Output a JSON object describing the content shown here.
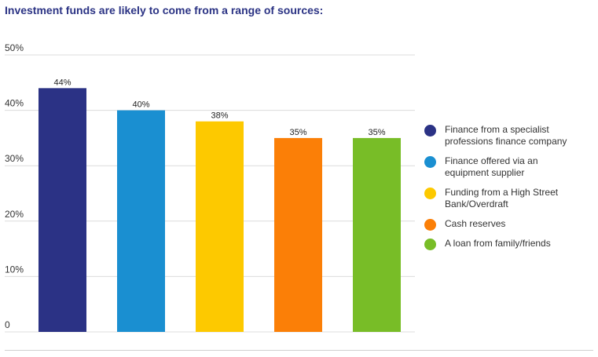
{
  "title": "Investment funds are likely to come from a range of sources:",
  "chart_data": {
    "type": "bar",
    "title": "Investment funds are likely to come from a range of sources:",
    "categories": [
      "Finance from a specialist professions finance company",
      "Finance offered via an equipment supplier",
      "Funding from a High Street Bank/Overdraft",
      "Cash reserves",
      "A loan from family/friends"
    ],
    "values": [
      44,
      40,
      38,
      35,
      35
    ],
    "value_labels": [
      "44%",
      "40%",
      "38%",
      "35%",
      "35%"
    ],
    "colors": [
      "#2b3285",
      "#1a8fd1",
      "#fdc900",
      "#fb7f07",
      "#78bd27"
    ],
    "ylim": [
      0,
      50
    ],
    "yticks": [
      0,
      10,
      20,
      30,
      40,
      50
    ],
    "ytick_labels": [
      "0",
      "10%",
      "20%",
      "30%",
      "40%",
      "50%"
    ],
    "xlabel": "",
    "ylabel": "",
    "grid": true,
    "legend_position": "right"
  },
  "legend": {
    "items": [
      {
        "line1": "Finance from a specialist",
        "line2": "professions finance company"
      },
      {
        "line1": "Finance offered via an",
        "line2": "equipment supplier"
      },
      {
        "line1": "Funding from a High Street",
        "line2": "Bank/Overdraft"
      },
      {
        "line1": "Cash reserves",
        "line2": ""
      },
      {
        "line1": "A loan from family/friends",
        "line2": ""
      }
    ]
  }
}
